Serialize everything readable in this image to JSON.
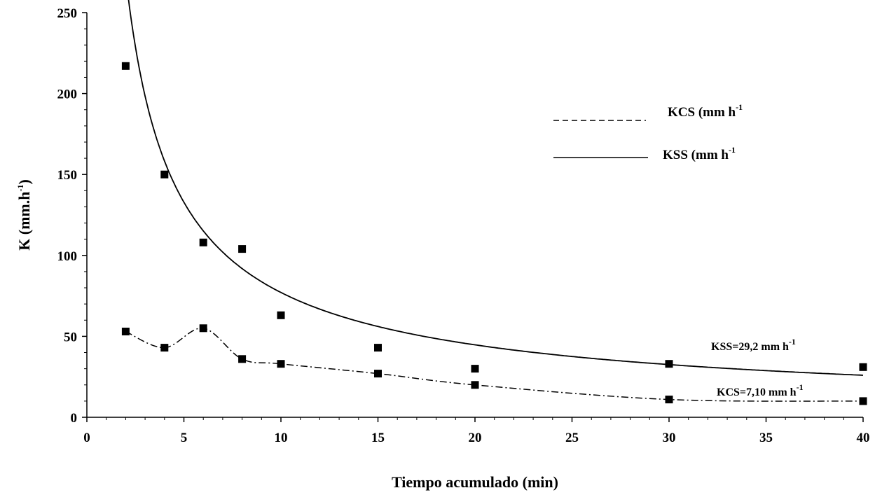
{
  "chart_data": {
    "type": "scatter",
    "xlabel": "Tiempo acumulado (min)",
    "ylabel": "K (mm.h-1)",
    "ylabel_parts": {
      "base": "K (mm.h",
      "sup": "-1",
      "end": ")"
    },
    "xlim": [
      0,
      40
    ],
    "ylim": [
      0,
      250
    ],
    "xticks": [
      0,
      5,
      10,
      15,
      20,
      25,
      30,
      35,
      40
    ],
    "yticks": [
      0,
      50,
      100,
      150,
      200,
      250
    ],
    "grid": false,
    "legend_position": "top-right",
    "series": [
      {
        "name": "KSS (mm h-1",
        "label_parts": {
          "base": "KSS (mm h",
          "sup": "-1"
        },
        "line_style": "solid",
        "points": [
          [
            2,
            217
          ],
          [
            4,
            150
          ],
          [
            6,
            108
          ],
          [
            8,
            104
          ],
          [
            10,
            63
          ],
          [
            15,
            43
          ],
          [
            20,
            30
          ],
          [
            30,
            33
          ],
          [
            40,
            31
          ]
        ],
        "fit_curve": {
          "model": "power",
          "a": 470,
          "b": -0.785,
          "x_range": [
            2,
            40
          ]
        }
      },
      {
        "name": "KCS (mm h-1",
        "label_parts": {
          "base": "KCS (mm h",
          "sup": "-1"
        },
        "line_style": "dash-dot",
        "points": [
          [
            2,
            53
          ],
          [
            4,
            43
          ],
          [
            6,
            55
          ],
          [
            8,
            36
          ],
          [
            10,
            33
          ],
          [
            15,
            27
          ],
          [
            20,
            20
          ],
          [
            30,
            11
          ],
          [
            40,
            10
          ]
        ]
      }
    ],
    "annotations": [
      {
        "name": "kss-annotation",
        "base": "KSS=29,2 mm h",
        "sup": "-1",
        "x": 40,
        "y": 29.2
      },
      {
        "name": "kcs-annotation",
        "base": "KCS=7,10 mm h",
        "sup": "-1",
        "x": 40,
        "y": 7.1
      }
    ],
    "marker_color": "#000000",
    "line_color": "#000000"
  }
}
